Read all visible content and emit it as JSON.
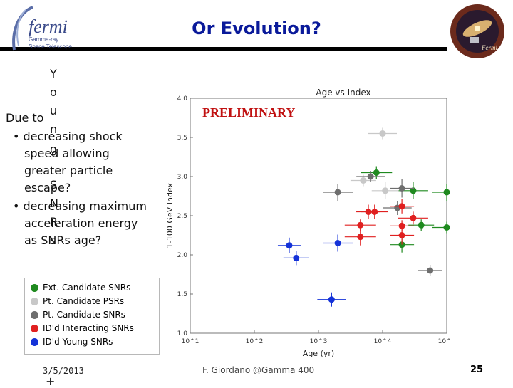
{
  "header": {
    "title": "Or Evolution?",
    "logo_name": "fermi",
    "logo_sub1": "Gamma-ray",
    "logo_sub2": "Space Telescope",
    "badge_label": "Fermi"
  },
  "body": {
    "vertical_letters": [
      "Y",
      "o",
      "u",
      "n",
      "g",
      "S",
      "N",
      "R",
      "s"
    ],
    "lines": [
      "Due to",
      "• decreasing shock",
      "speed allowing",
      "greater particle",
      "escape?",
      "• decreasing maximum",
      "acceleration energy",
      "as SNRs age?"
    ]
  },
  "legend": {
    "items": [
      {
        "label": "Ext. Candidate SNRs",
        "color": "#1f8a1f"
      },
      {
        "label": "Pt. Candidate PSRs",
        "color": "#c8c8c8"
      },
      {
        "label": "Pt. Candidate SNRs",
        "color": "#6e6e6e"
      },
      {
        "label": "ID'd Interacting SNRs",
        "color": "#e02020"
      },
      {
        "label": "ID'd Young SNRs",
        "color": "#1432d8"
      }
    ]
  },
  "chart_data": {
    "type": "scatter",
    "title": "Age vs Index",
    "annotation": "PRELIMINARY",
    "xlabel": "Age (yr)",
    "ylabel": "1-100 GeV Index",
    "xscale": "log",
    "xlim": [
      10,
      100000
    ],
    "ylim": [
      1.0,
      4.0
    ],
    "xticks": [
      "10^1",
      "10^2",
      "10^3",
      "10^4",
      "10^5"
    ],
    "yticks": [
      "1.0",
      "1.5",
      "2.0",
      "2.5",
      "3.0",
      "3.5",
      "4.0"
    ],
    "series": [
      {
        "name": "Ext. Candidate SNRs",
        "color": "#1f8a1f",
        "points": [
          {
            "x": 8000,
            "y": 3.05
          },
          {
            "x": 30000,
            "y": 2.82
          },
          {
            "x": 100000,
            "y": 2.8
          },
          {
            "x": 40000,
            "y": 2.38
          },
          {
            "x": 100000,
            "y": 2.35
          },
          {
            "x": 20000,
            "y": 2.13
          }
        ]
      },
      {
        "name": "Pt. Candidate PSRs",
        "color": "#c8c8c8",
        "points": [
          {
            "x": 10000,
            "y": 3.55
          },
          {
            "x": 5000,
            "y": 2.95
          },
          {
            "x": 11000,
            "y": 2.82
          }
        ]
      },
      {
        "name": "Pt. Candidate SNRs",
        "color": "#6e6e6e",
        "points": [
          {
            "x": 6500,
            "y": 3.0
          },
          {
            "x": 2000,
            "y": 2.8
          },
          {
            "x": 20000,
            "y": 2.85
          },
          {
            "x": 17000,
            "y": 2.6
          },
          {
            "x": 55000,
            "y": 1.8
          }
        ]
      },
      {
        "name": "ID'd Interacting SNRs",
        "color": "#e02020",
        "points": [
          {
            "x": 20000,
            "y": 2.62
          },
          {
            "x": 6000,
            "y": 2.55
          },
          {
            "x": 7500,
            "y": 2.55
          },
          {
            "x": 30000,
            "y": 2.47
          },
          {
            "x": 4500,
            "y": 2.38
          },
          {
            "x": 20000,
            "y": 2.37
          },
          {
            "x": 4500,
            "y": 2.23
          },
          {
            "x": 20000,
            "y": 2.25
          }
        ]
      },
      {
        "name": "ID'd Young SNRs",
        "color": "#1432d8",
        "points": [
          {
            "x": 350,
            "y": 2.12
          },
          {
            "x": 450,
            "y": 1.96
          },
          {
            "x": 2000,
            "y": 2.15
          },
          {
            "x": 1600,
            "y": 1.43
          }
        ]
      }
    ]
  },
  "footer": {
    "date": "3/5/2013",
    "plus": "+",
    "center": "F. Giordano @Gamma 400",
    "page": "25"
  }
}
